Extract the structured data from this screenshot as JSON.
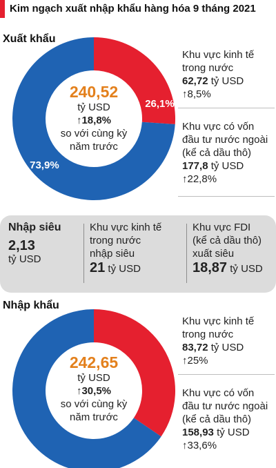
{
  "header": {
    "title": "Kim ngạch xuất nhập khẩu hàng hóa 9 tháng 2021"
  },
  "colors": {
    "red": "#e5202f",
    "blue": "#1f63b3",
    "box": "#dcdcdc"
  },
  "export": {
    "title": "Xuất khẩu",
    "center": {
      "value": "240,52",
      "unit": "tỷ USD",
      "change": "↑18,8%",
      "note1": "so với cùng kỳ",
      "note2": "năm trước"
    },
    "domestic": {
      "line1": "Khu vực kinh tế",
      "line2": "trong nước",
      "value": "62,72",
      "unit": "tỷ USD",
      "change": "↑8,5%"
    },
    "fdi": {
      "line1": "Khu vực có vốn",
      "line2": "đầu tư nước ngoài",
      "line3": "(kể cả dầu thô)",
      "value": "177,8",
      "unit": "tỷ USD",
      "change": "↑22,8%"
    }
  },
  "trade_balance": {
    "title": "Nhập siêu",
    "value": "2,13",
    "unit": "tỷ USD",
    "domestic": {
      "line1": "Khu vực kinh tế",
      "line2": "trong nước",
      "line3": "nhập siêu",
      "value": "21",
      "unit": "tỷ USD"
    },
    "fdi": {
      "line1": "Khu vực FDI",
      "line2": "(kể cả dầu thô)",
      "line3": "xuất siêu",
      "value": "18,87",
      "unit": "tỷ USD"
    }
  },
  "import": {
    "title": "Nhập khẩu",
    "center": {
      "value": "242,65",
      "unit": "tỷ USD",
      "change": "↑30,5%",
      "note1": "so với cùng kỳ",
      "note2": "năm trước"
    },
    "domestic": {
      "line1": "Khu vực kinh tế",
      "line2": "trong nước",
      "value": "83,72",
      "unit": "tỷ USD",
      "change": "↑25%"
    },
    "fdi": {
      "line1": "Khu vực có vốn",
      "line2": "đầu tư nước ngoài",
      "line3": "(kể cả dầu thô)",
      "value": "158,93",
      "unit": "tỷ USD",
      "change": "↑33,6%"
    }
  },
  "chart_data": [
    {
      "type": "pie",
      "title": "Xuất khẩu",
      "categories": [
        "Khu vực kinh tế trong nước",
        "Khu vực có vốn đầu tư nước ngoài (kể cả dầu thô)"
      ],
      "values": [
        62.72,
        177.8
      ],
      "percent_labels": [
        "26,1%",
        "73,9%"
      ],
      "colors": [
        "#e5202f",
        "#1f63b3"
      ]
    },
    {
      "type": "pie",
      "title": "Nhập khẩu",
      "categories": [
        "Khu vực kinh tế trong nước",
        "Khu vực có vốn đầu tư nước ngoài (kể cả dầu thô)"
      ],
      "values": [
        83.72,
        158.93
      ],
      "colors": [
        "#e5202f",
        "#1f63b3"
      ]
    }
  ]
}
